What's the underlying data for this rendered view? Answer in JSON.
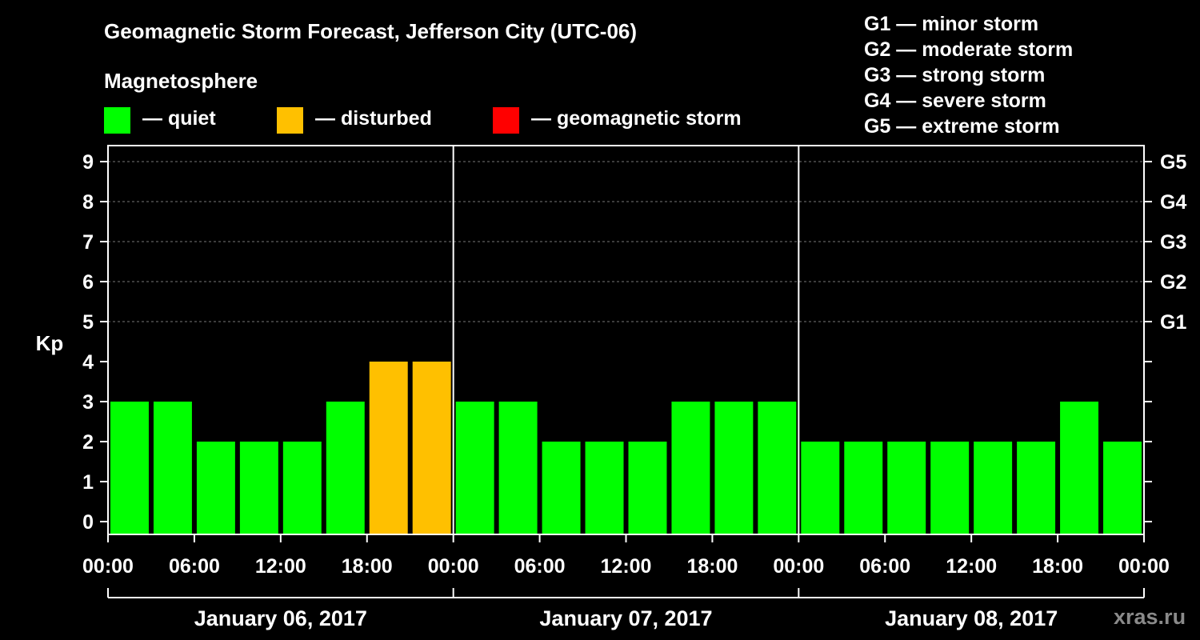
{
  "title": "Geomagnetic Storm Forecast, Jefferson City (UTC-06)",
  "magnetosphere_label": "Magnetosphere",
  "legend": [
    {
      "label": "— quiet",
      "color": "#00ff00"
    },
    {
      "label": "— disturbed",
      "color": "#ffc000"
    },
    {
      "label": "— geomagnetic storm",
      "color": "#ff0000"
    }
  ],
  "storm_levels": [
    "G1 — minor storm",
    "G2 — moderate storm",
    "G3 — strong storm",
    "G4 — severe storm",
    "G5 — extreme storm"
  ],
  "watermark": "xras.ru",
  "chart_data": {
    "type": "bar",
    "ylabel": "Kp",
    "ylim": [
      0,
      9
    ],
    "y_ticks": [
      "0",
      "1",
      "2",
      "3",
      "4",
      "5",
      "6",
      "7",
      "8",
      "9"
    ],
    "right_axis_labels": [
      {
        "kp": 5,
        "label": "G1"
      },
      {
        "kp": 6,
        "label": "G2"
      },
      {
        "kp": 7,
        "label": "G3"
      },
      {
        "kp": 8,
        "label": "G4"
      },
      {
        "kp": 9,
        "label": "G5"
      }
    ],
    "x_tick_labels": [
      "00:00",
      "06:00",
      "12:00",
      "18:00",
      "00:00",
      "06:00",
      "12:00",
      "18:00",
      "00:00",
      "06:00",
      "12:00",
      "18:00",
      "00:00"
    ],
    "days": [
      "January 06, 2017",
      "January 07, 2017",
      "January 08, 2017"
    ],
    "values": [
      3,
      3,
      2,
      2,
      2,
      3,
      4,
      4,
      3,
      3,
      2,
      2,
      2,
      3,
      3,
      3,
      2,
      2,
      2,
      2,
      2,
      2,
      3,
      2
    ],
    "colors": {
      "quiet": "#00ff00",
      "disturbed": "#ffc000",
      "storm": "#ff0000"
    },
    "grid": true
  }
}
